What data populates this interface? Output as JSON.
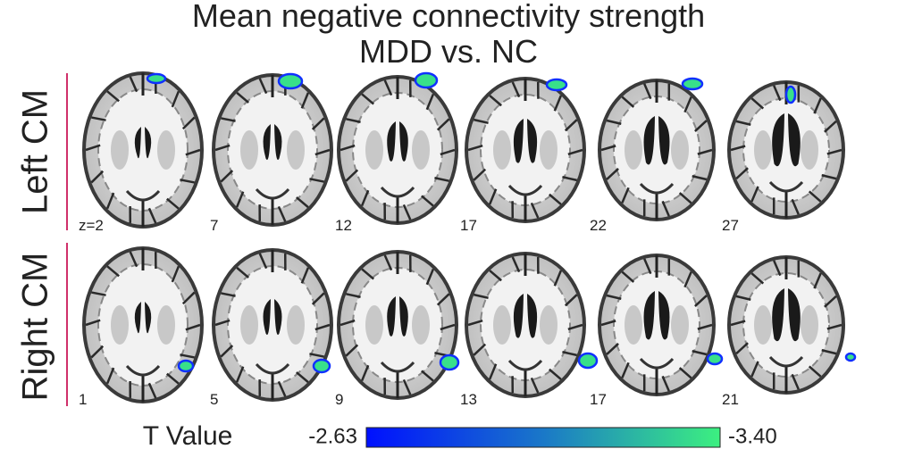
{
  "title": {
    "line1": "Mean negative connectivity strength",
    "line2": "MDD vs. NC"
  },
  "rows": [
    {
      "label": "Left CM",
      "slices": [
        "z=2",
        "7",
        "12",
        "17",
        "22",
        "27"
      ]
    },
    {
      "label": "Right CM",
      "slices": [
        "1",
        "5",
        "9",
        "13",
        "17",
        "21"
      ]
    }
  ],
  "colorbar": {
    "label": "T Value",
    "min_label": "-2.63",
    "max_label": "-3.40"
  }
}
